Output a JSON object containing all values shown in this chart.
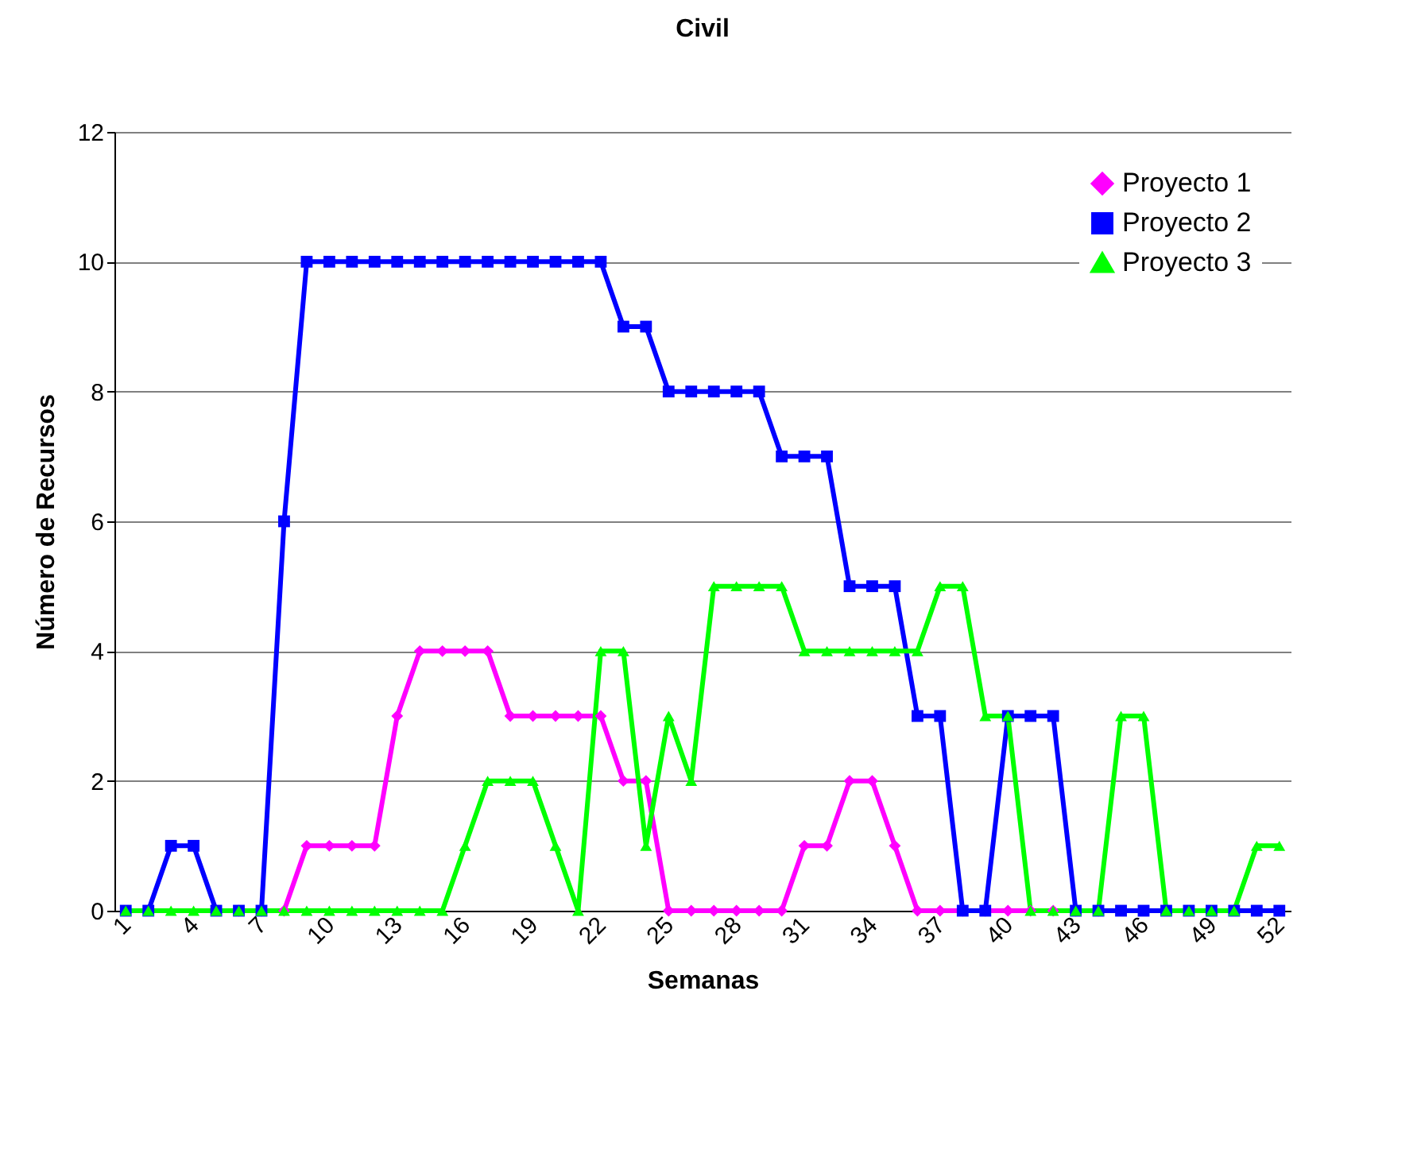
{
  "chart_data": {
    "type": "line",
    "title": "Civil",
    "xlabel": "Semanas",
    "ylabel": "Número de Recursos",
    "categories": [
      "1",
      null,
      null,
      "4",
      null,
      null,
      "7",
      null,
      null,
      "10",
      null,
      null,
      "13",
      null,
      null,
      "16",
      null,
      null,
      "19",
      null,
      null,
      "22",
      null,
      null,
      "25",
      null,
      null,
      "28",
      null,
      null,
      "31",
      null,
      null,
      "34",
      null,
      null,
      "37",
      null,
      null,
      "40",
      null,
      null,
      "43",
      null,
      null,
      "46",
      null,
      null,
      "49",
      null,
      null,
      "52"
    ],
    "series": [
      {
        "name": "Proyecto 1",
        "color": "#ff00ff",
        "marker": "diamond",
        "values": [
          null,
          null,
          null,
          null,
          null,
          0,
          0,
          0,
          1,
          1,
          1,
          1,
          3,
          4,
          4,
          4,
          4,
          3,
          3,
          3,
          3,
          3,
          2,
          2,
          0,
          0,
          0,
          0,
          0,
          0,
          1,
          1,
          2,
          2,
          1,
          0,
          0,
          0,
          0,
          0,
          0,
          0,
          0,
          0,
          null,
          null,
          null,
          null,
          null,
          null,
          null,
          null
        ]
      },
      {
        "name": "Proyecto 2",
        "color": "#0000ff",
        "marker": "square",
        "values": [
          0,
          0,
          1,
          1,
          0,
          0,
          0,
          6,
          10,
          10,
          10,
          10,
          10,
          10,
          10,
          10,
          10,
          10,
          10,
          10,
          10,
          10,
          9,
          9,
          8,
          8,
          8,
          8,
          8,
          7,
          7,
          7,
          5,
          5,
          5,
          3,
          3,
          0,
          0,
          3,
          3,
          3,
          0,
          0,
          0,
          0,
          0,
          0,
          0,
          0,
          0,
          0
        ]
      },
      {
        "name": "Proyecto 3",
        "color": "#00ff00",
        "marker": "triangle",
        "values": [
          0,
          0,
          0,
          0,
          0,
          0,
          0,
          0,
          0,
          0,
          0,
          0,
          0,
          0,
          0,
          1,
          2,
          2,
          2,
          1,
          0,
          4,
          4,
          1,
          3,
          2,
          5,
          5,
          5,
          5,
          4,
          4,
          4,
          4,
          4,
          4,
          5,
          5,
          3,
          3,
          0,
          0,
          0,
          0,
          3,
          3,
          0,
          0,
          0,
          0,
          1,
          1
        ]
      }
    ],
    "ylim": [
      0,
      12
    ],
    "yticks": [
      0,
      2,
      4,
      6,
      8,
      10,
      12
    ],
    "grid": "y",
    "legend": "top right",
    "line_style": "solid"
  }
}
